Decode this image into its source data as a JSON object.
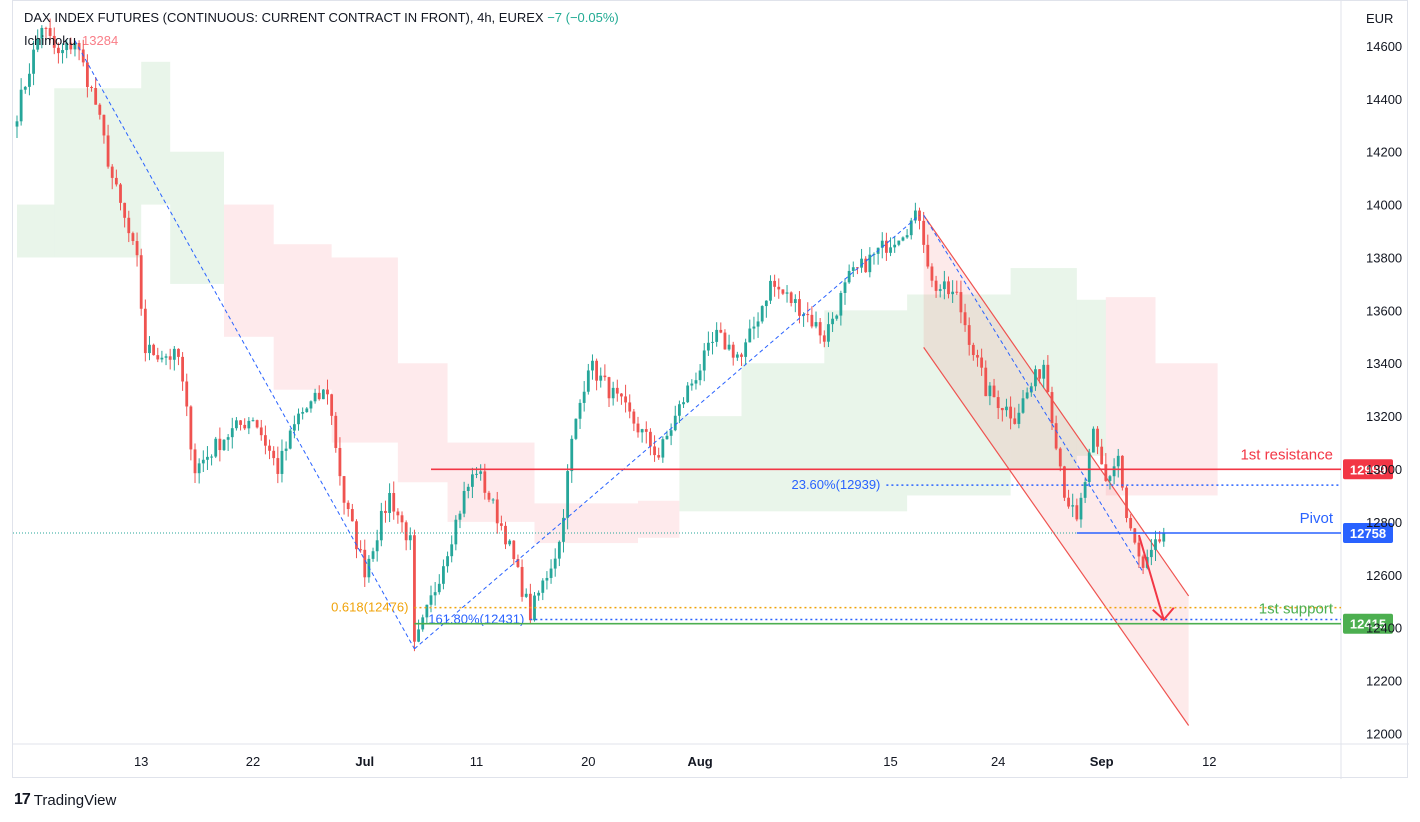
{
  "header": {
    "title": "DAX INDEX FUTURES (CONTINUOUS: CURRENT CONTRACT IN FRONT), 4h, EUREX",
    "change": "−7 (−0.05%)",
    "indicator_label": "Ichimoku",
    "indicator_value": "13284"
  },
  "brand": {
    "logo": "17",
    "name": "TradingView"
  },
  "colors": {
    "up": "#26a69a",
    "down": "#ef5350",
    "resistance": "#f23645",
    "pivot": "#2962ff",
    "support": "#4caf50",
    "fib": "#2962ff",
    "gold": "#f0a30a",
    "cloud_green": "#4caf50",
    "cloud_red": "#f7525f"
  },
  "chart_data": {
    "type": "candlestick",
    "currency": "EUR",
    "timeframe": "4h",
    "ylim": [
      11960,
      14770
    ],
    "y_ticks": [
      12000,
      12200,
      12400,
      12600,
      12800,
      13000,
      13200,
      13400,
      13600,
      13800,
      14000,
      14200,
      14400,
      14600
    ],
    "x_labels": [
      "13",
      "22",
      "Jul",
      "11",
      "20",
      "Aug",
      "15",
      "24",
      "Sep",
      "12"
    ],
    "x_label_bars": [
      30,
      57,
      84,
      111,
      138,
      165,
      211,
      237,
      262,
      288
    ],
    "total_bars": 310,
    "last_price": 12758,
    "key_path": [
      [
        0,
        14350
      ],
      [
        6,
        14680
      ],
      [
        10,
        14560
      ],
      [
        14,
        14620
      ],
      [
        19,
        14380
      ],
      [
        23,
        14100
      ],
      [
        29,
        13780
      ],
      [
        31,
        13450
      ],
      [
        39,
        13420
      ],
      [
        43,
        13000
      ],
      [
        50,
        13120
      ],
      [
        57,
        13200
      ],
      [
        63,
        13000
      ],
      [
        68,
        13200
      ],
      [
        75,
        13300
      ],
      [
        79,
        12880
      ],
      [
        84,
        12620
      ],
      [
        90,
        12900
      ],
      [
        95,
        12720
      ],
      [
        96,
        12320
      ],
      [
        101,
        12550
      ],
      [
        108,
        12900
      ],
      [
        111,
        13000
      ],
      [
        118,
        12750
      ],
      [
        124,
        12450
      ],
      [
        131,
        12720
      ],
      [
        134,
        13100
      ],
      [
        138,
        13400
      ],
      [
        147,
        13220
      ],
      [
        155,
        13050
      ],
      [
        162,
        13300
      ],
      [
        169,
        13500
      ],
      [
        175,
        13420
      ],
      [
        182,
        13700
      ],
      [
        190,
        13600
      ],
      [
        195,
        13500
      ],
      [
        201,
        13720
      ],
      [
        210,
        13850
      ],
      [
        218,
        13960
      ],
      [
        221,
        13700
      ],
      [
        227,
        13650
      ],
      [
        234,
        13300
      ],
      [
        241,
        13200
      ],
      [
        248,
        13400
      ],
      [
        253,
        12920
      ],
      [
        256,
        12790
      ],
      [
        260,
        13120
      ],
      [
        263,
        12950
      ],
      [
        266,
        13050
      ],
      [
        268,
        12810
      ],
      [
        272,
        12610
      ],
      [
        275,
        12700
      ],
      [
        277,
        12760
      ]
    ],
    "ichimoku_cloud": [
      {
        "x0": 0,
        "x1": 9,
        "lo": 13800,
        "hi": 14000,
        "color": "green"
      },
      {
        "x0": 9,
        "x1": 30,
        "lo": 13800,
        "hi": 14440,
        "color": "green"
      },
      {
        "x0": 30,
        "x1": 37,
        "lo": 14000,
        "hi": 14540,
        "color": "green"
      },
      {
        "x0": 37,
        "x1": 50,
        "lo": 13700,
        "hi": 14200,
        "color": "green"
      },
      {
        "x0": 50,
        "x1": 62,
        "lo": 13500,
        "hi": 14000,
        "color": "red"
      },
      {
        "x0": 62,
        "x1": 76,
        "lo": 13300,
        "hi": 13850,
        "color": "red"
      },
      {
        "x0": 76,
        "x1": 92,
        "lo": 13100,
        "hi": 13800,
        "color": "red"
      },
      {
        "x0": 92,
        "x1": 104,
        "lo": 12950,
        "hi": 13400,
        "color": "red"
      },
      {
        "x0": 104,
        "x1": 125,
        "lo": 12800,
        "hi": 13100,
        "color": "red"
      },
      {
        "x0": 125,
        "x1": 150,
        "lo": 12720,
        "hi": 12870,
        "color": "red"
      },
      {
        "x0": 150,
        "x1": 160,
        "lo": 12740,
        "hi": 12880,
        "color": "red"
      },
      {
        "x0": 160,
        "x1": 175,
        "lo": 12840,
        "hi": 13200,
        "color": "green"
      },
      {
        "x0": 175,
        "x1": 195,
        "lo": 12840,
        "hi": 13400,
        "color": "green"
      },
      {
        "x0": 195,
        "x1": 215,
        "lo": 12840,
        "hi": 13600,
        "color": "green"
      },
      {
        "x0": 215,
        "x1": 240,
        "lo": 12900,
        "hi": 13660,
        "color": "green"
      },
      {
        "x0": 240,
        "x1": 256,
        "lo": 13000,
        "hi": 13760,
        "color": "green"
      },
      {
        "x0": 256,
        "x1": 263,
        "lo": 13050,
        "hi": 13640,
        "color": "green"
      },
      {
        "x0": 263,
        "x1": 275,
        "lo": 12900,
        "hi": 13650,
        "color": "red"
      },
      {
        "x0": 275,
        "x1": 290,
        "lo": 12900,
        "hi": 13400,
        "color": "red"
      }
    ],
    "levels": [
      {
        "name": "1st resistance",
        "value": 12999,
        "label": "12999",
        "color": "#f23645",
        "from_bar": 100
      },
      {
        "name": "Pivot",
        "value": 12758,
        "label": "12758",
        "color": "#2962ff",
        "from_bar": 256
      },
      {
        "name": "1st support",
        "value": 12415,
        "label": "12415",
        "color": "#4caf50",
        "from_bar": 96
      }
    ],
    "fib_levels": [
      {
        "text": "23.60%(12939)",
        "value": 12939,
        "color": "#2962ff",
        "from_bar": 210
      },
      {
        "text": "0.618(12476)",
        "value": 12476,
        "color": "#f0a30a",
        "from_bar": 96
      },
      {
        "text": "161.80%(12431)",
        "value": 12431,
        "color": "#2962ff",
        "from_bar": 124
      }
    ],
    "channel": {
      "upper": [
        [
          219,
          13960
        ],
        [
          283,
          12520
        ]
      ],
      "lower": [
        [
          219,
          13460
        ],
        [
          283,
          12030
        ]
      ]
    },
    "trend_lines": [
      [
        [
          14,
          14620
        ],
        [
          96,
          12320
        ]
      ],
      [
        [
          96,
          12320
        ],
        [
          218,
          13960
        ]
      ],
      [
        [
          219,
          13960
        ],
        [
          272,
          12610
        ]
      ]
    ],
    "forecast_arrow": [
      [
        271,
        12750
      ],
      [
        277,
        12430
      ]
    ]
  }
}
